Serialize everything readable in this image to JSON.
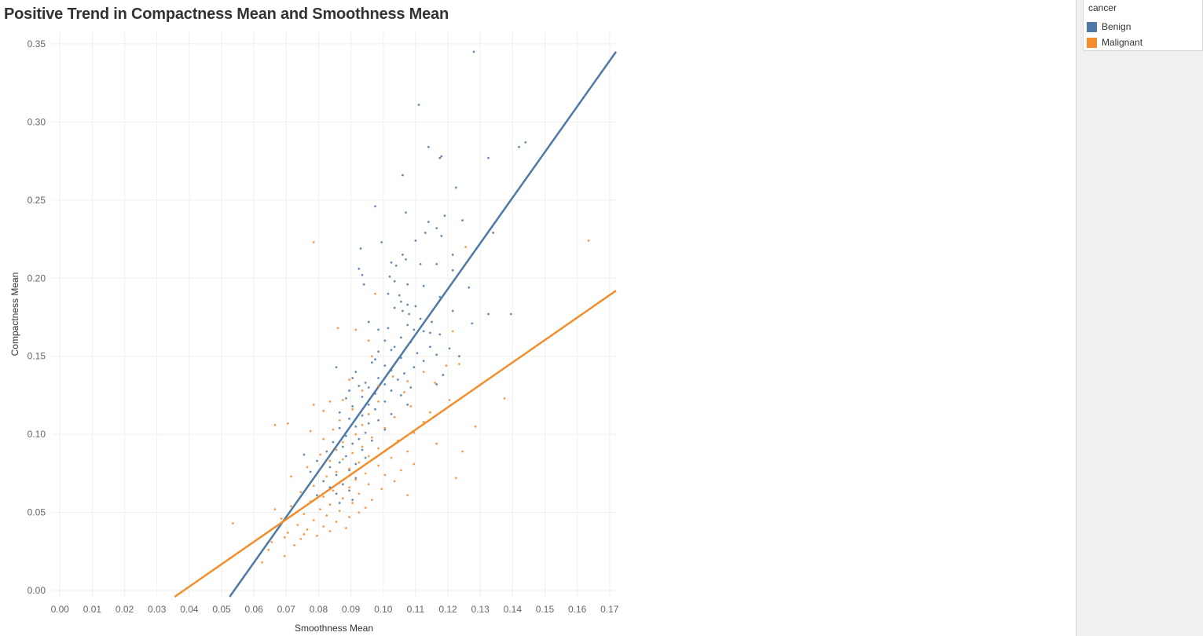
{
  "page": {
    "title": "Positive Trend in Compactness Mean and Smoothness Mean"
  },
  "legend": {
    "title": "cancer",
    "items": [
      {
        "label": "Benign",
        "color": "#4e79a7"
      },
      {
        "label": "Malignant",
        "color": "#f28e2b"
      }
    ]
  },
  "chart_data": {
    "type": "scatter",
    "title": "Positive Trend in Compactness Mean and Smoothness Mean",
    "xlabel": "Smoothness Mean",
    "ylabel": "Compactness Mean",
    "xlim": [
      -0.0025,
      0.172
    ],
    "ylim": [
      -0.004,
      0.358
    ],
    "x_ticks": [
      0.0,
      0.01,
      0.02,
      0.03,
      0.04,
      0.05,
      0.06,
      0.07,
      0.08,
      0.09,
      0.1,
      0.11,
      0.12,
      0.13,
      0.14,
      0.15,
      0.16,
      0.17
    ],
    "x_tick_labels": [
      "0.00",
      "0.01",
      "0.02",
      "0.03",
      "0.04",
      "0.05",
      "0.06",
      "0.07",
      "0.08",
      "0.09",
      "0.10",
      "0.11",
      "0.12",
      "0.13",
      "0.14",
      "0.15",
      "0.16",
      "0.17"
    ],
    "y_ticks": [
      0.0,
      0.05,
      0.1,
      0.15,
      0.2,
      0.25,
      0.3,
      0.35
    ],
    "y_tick_labels": [
      "0.00",
      "0.05",
      "0.10",
      "0.15",
      "0.20",
      "0.25",
      "0.30",
      "0.35"
    ],
    "grid": true,
    "legend_position": "top-right",
    "series": [
      {
        "name": "Benign",
        "color": "#4e79a7",
        "points": [
          [
            0.128,
            0.345
          ],
          [
            0.111,
            0.311
          ],
          [
            0.144,
            0.287
          ],
          [
            0.142,
            0.284
          ],
          [
            0.114,
            0.284
          ],
          [
            0.118,
            0.278
          ],
          [
            0.1175,
            0.277
          ],
          [
            0.1325,
            0.277
          ],
          [
            0.106,
            0.266
          ],
          [
            0.1225,
            0.258
          ],
          [
            0.0975,
            0.246
          ],
          [
            0.107,
            0.242
          ],
          [
            0.119,
            0.24
          ],
          [
            0.1245,
            0.237
          ],
          [
            0.114,
            0.236
          ],
          [
            0.1165,
            0.232
          ],
          [
            0.113,
            0.229
          ],
          [
            0.134,
            0.229
          ],
          [
            0.118,
            0.227
          ],
          [
            0.0995,
            0.223
          ],
          [
            0.11,
            0.224
          ],
          [
            0.093,
            0.219
          ],
          [
            0.1215,
            0.215
          ],
          [
            0.106,
            0.215
          ],
          [
            0.107,
            0.212
          ],
          [
            0.1025,
            0.21
          ],
          [
            0.1115,
            0.209
          ],
          [
            0.1165,
            0.209
          ],
          [
            0.104,
            0.208
          ],
          [
            0.0925,
            0.206
          ],
          [
            0.1215,
            0.205
          ],
          [
            0.102,
            0.201
          ],
          [
            0.1035,
            0.198
          ],
          [
            0.1075,
            0.196
          ],
          [
            0.094,
            0.196
          ],
          [
            0.0935,
            0.202
          ],
          [
            0.1125,
            0.195
          ],
          [
            0.1265,
            0.194
          ],
          [
            0.1015,
            0.19
          ],
          [
            0.105,
            0.189
          ],
          [
            0.1175,
            0.188
          ],
          [
            0.1055,
            0.185
          ],
          [
            0.1075,
            0.183
          ],
          [
            0.11,
            0.182
          ],
          [
            0.1035,
            0.181
          ],
          [
            0.106,
            0.179
          ],
          [
            0.108,
            0.177
          ],
          [
            0.1215,
            0.179
          ],
          [
            0.1325,
            0.177
          ],
          [
            0.1395,
            0.177
          ],
          [
            0.1115,
            0.174
          ],
          [
            0.115,
            0.172
          ],
          [
            0.0955,
            0.172
          ],
          [
            0.1075,
            0.17
          ],
          [
            0.1275,
            0.171
          ],
          [
            0.1015,
            0.168
          ],
          [
            0.1095,
            0.167
          ],
          [
            0.0985,
            0.167
          ],
          [
            0.1125,
            0.166
          ],
          [
            0.1145,
            0.165
          ],
          [
            0.1055,
            0.162
          ],
          [
            0.1175,
            0.164
          ],
          [
            0.1005,
            0.16
          ],
          [
            0.1085,
            0.159
          ],
          [
            0.1035,
            0.156
          ],
          [
            0.1145,
            0.156
          ],
          [
            0.1205,
            0.155
          ],
          [
            0.1025,
            0.154
          ],
          [
            0.0985,
            0.153
          ],
          [
            0.1105,
            0.152
          ],
          [
            0.1165,
            0.151
          ],
          [
            0.1055,
            0.149
          ],
          [
            0.0975,
            0.148
          ],
          [
            0.0965,
            0.146
          ],
          [
            0.1125,
            0.147
          ],
          [
            0.1235,
            0.15
          ],
          [
            0.0855,
            0.143
          ],
          [
            0.1005,
            0.144
          ],
          [
            0.1095,
            0.143
          ],
          [
            0.1025,
            0.141
          ],
          [
            0.0915,
            0.14
          ],
          [
            0.1065,
            0.139
          ],
          [
            0.1185,
            0.138
          ],
          [
            0.0985,
            0.136
          ],
          [
            0.0905,
            0.136
          ],
          [
            0.1045,
            0.135
          ],
          [
            0.0945,
            0.133
          ],
          [
            0.1005,
            0.132
          ],
          [
            0.0925,
            0.131
          ],
          [
            0.0955,
            0.13
          ],
          [
            0.1085,
            0.13
          ],
          [
            0.1165,
            0.132
          ],
          [
            0.1025,
            0.128
          ],
          [
            0.0895,
            0.128
          ],
          [
            0.0975,
            0.126
          ],
          [
            0.1055,
            0.125
          ],
          [
            0.0935,
            0.124
          ],
          [
            0.0885,
            0.123
          ],
          [
            0.1005,
            0.121
          ],
          [
            0.0955,
            0.119
          ],
          [
            0.1075,
            0.119
          ],
          [
            0.0905,
            0.118
          ],
          [
            0.0975,
            0.116
          ],
          [
            0.0865,
            0.114
          ],
          [
            0.1025,
            0.113
          ],
          [
            0.0935,
            0.112
          ],
          [
            0.0895,
            0.11
          ],
          [
            0.0985,
            0.109
          ],
          [
            0.0955,
            0.107
          ],
          [
            0.0915,
            0.105
          ],
          [
            0.0865,
            0.104
          ],
          [
            0.1005,
            0.103
          ],
          [
            0.0945,
            0.101
          ],
          [
            0.0885,
            0.099
          ],
          [
            0.0925,
            0.097
          ],
          [
            0.0965,
            0.096
          ],
          [
            0.0845,
            0.095
          ],
          [
            0.0905,
            0.094
          ],
          [
            0.0875,
            0.092
          ],
          [
            0.0935,
            0.09
          ],
          [
            0.0825,
            0.089
          ],
          [
            0.0755,
            0.087
          ],
          [
            0.0885,
            0.086
          ],
          [
            0.0945,
            0.085
          ],
          [
            0.0795,
            0.083
          ],
          [
            0.0865,
            0.082
          ],
          [
            0.0915,
            0.081
          ],
          [
            0.0835,
            0.079
          ],
          [
            0.0895,
            0.077
          ],
          [
            0.0775,
            0.076
          ],
          [
            0.0855,
            0.074
          ],
          [
            0.0915,
            0.072
          ],
          [
            0.0815,
            0.07
          ],
          [
            0.0875,
            0.068
          ],
          [
            0.0835,
            0.066
          ],
          [
            0.0895,
            0.064
          ],
          [
            0.0855,
            0.062
          ],
          [
            0.0795,
            0.061
          ],
          [
            0.0905,
            0.058
          ],
          [
            0.0865,
            0.056
          ]
        ],
        "trend_line": {
          "x": [
            0.0525,
            0.172
          ],
          "y": [
            -0.004,
            0.345
          ]
        }
      },
      {
        "name": "Malignant",
        "color": "#f28e2b",
        "points": [
          [
            0.0785,
            0.223
          ],
          [
            0.1635,
            0.224
          ],
          [
            0.1255,
            0.22
          ],
          [
            0.0975,
            0.19
          ],
          [
            0.086,
            0.168
          ],
          [
            0.0915,
            0.167
          ],
          [
            0.1215,
            0.166
          ],
          [
            0.0955,
            0.16
          ],
          [
            0.0965,
            0.15
          ],
          [
            0.1235,
            0.145
          ],
          [
            0.1195,
            0.144
          ],
          [
            0.1125,
            0.14
          ],
          [
            0.103,
            0.137
          ],
          [
            0.0895,
            0.135
          ],
          [
            0.1075,
            0.134
          ],
          [
            0.116,
            0.133
          ],
          [
            0.0985,
            0.131
          ],
          [
            0.0935,
            0.128
          ],
          [
            0.1065,
            0.127
          ],
          [
            0.1375,
            0.123
          ],
          [
            0.1205,
            0.122
          ],
          [
            0.0875,
            0.122
          ],
          [
            0.0835,
            0.121
          ],
          [
            0.0985,
            0.121
          ],
          [
            0.0785,
            0.119
          ],
          [
            0.1085,
            0.118
          ],
          [
            0.0905,
            0.116
          ],
          [
            0.0815,
            0.115
          ],
          [
            0.1145,
            0.114
          ],
          [
            0.0955,
            0.113
          ],
          [
            0.1035,
            0.111
          ],
          [
            0.0865,
            0.109
          ],
          [
            0.1125,
            0.108
          ],
          [
            0.0665,
            0.106
          ],
          [
            0.0705,
            0.107
          ],
          [
            0.0935,
            0.106
          ],
          [
            0.1285,
            0.105
          ],
          [
            0.1005,
            0.104
          ],
          [
            0.0845,
            0.103
          ],
          [
            0.0775,
            0.102
          ],
          [
            0.1095,
            0.101
          ],
          [
            0.0915,
            0.1
          ],
          [
            0.0965,
            0.098
          ],
          [
            0.0815,
            0.097
          ],
          [
            0.1045,
            0.096
          ],
          [
            0.0875,
            0.095
          ],
          [
            0.1165,
            0.094
          ],
          [
            0.0935,
            0.092
          ],
          [
            0.0985,
            0.091
          ],
          [
            0.0855,
            0.09
          ],
          [
            0.1075,
            0.089
          ],
          [
            0.1245,
            0.089
          ],
          [
            0.0905,
            0.088
          ],
          [
            0.0805,
            0.087
          ],
          [
            0.0955,
            0.086
          ],
          [
            0.1025,
            0.085
          ],
          [
            0.0875,
            0.084
          ],
          [
            0.0835,
            0.083
          ],
          [
            0.0925,
            0.082
          ],
          [
            0.1095,
            0.081
          ],
          [
            0.0985,
            0.08
          ],
          [
            0.0765,
            0.079
          ],
          [
            0.0895,
            0.078
          ],
          [
            0.1055,
            0.077
          ],
          [
            0.0855,
            0.076
          ],
          [
            0.0945,
            0.075
          ],
          [
            0.1005,
            0.074
          ],
          [
            0.0825,
            0.073
          ],
          [
            0.0715,
            0.073
          ],
          [
            0.1225,
            0.072
          ],
          [
            0.0915,
            0.071
          ],
          [
            0.1035,
            0.07
          ],
          [
            0.0865,
            0.069
          ],
          [
            0.0955,
            0.068
          ],
          [
            0.0785,
            0.067
          ],
          [
            0.0895,
            0.066
          ],
          [
            0.0995,
            0.065
          ],
          [
            0.0845,
            0.064
          ],
          [
            0.0745,
            0.063
          ],
          [
            0.0925,
            0.062
          ],
          [
            0.1075,
            0.061
          ],
          [
            0.0815,
            0.06
          ],
          [
            0.0875,
            0.059
          ],
          [
            0.0965,
            0.058
          ],
          [
            0.0775,
            0.057
          ],
          [
            0.0905,
            0.056
          ],
          [
            0.0835,
            0.055
          ],
          [
            0.0715,
            0.054
          ],
          [
            0.0945,
            0.053
          ],
          [
            0.0805,
            0.052
          ],
          [
            0.0665,
            0.052
          ],
          [
            0.0865,
            0.051
          ],
          [
            0.0925,
            0.05
          ],
          [
            0.0755,
            0.049
          ],
          [
            0.0825,
            0.048
          ],
          [
            0.0895,
            0.047
          ],
          [
            0.0685,
            0.046
          ],
          [
            0.0785,
            0.045
          ],
          [
            0.0855,
            0.044
          ],
          [
            0.0535,
            0.043
          ],
          [
            0.0735,
            0.042
          ],
          [
            0.0815,
            0.041
          ],
          [
            0.0885,
            0.04
          ],
          [
            0.0765,
            0.039
          ],
          [
            0.0835,
            0.038
          ],
          [
            0.0705,
            0.037
          ],
          [
            0.0755,
            0.036
          ],
          [
            0.0795,
            0.035
          ],
          [
            0.0695,
            0.034
          ],
          [
            0.0745,
            0.033
          ],
          [
            0.0655,
            0.031
          ],
          [
            0.0725,
            0.029
          ],
          [
            0.0645,
            0.026
          ],
          [
            0.0695,
            0.022
          ],
          [
            0.0625,
            0.018
          ]
        ],
        "trend_line": {
          "x": [
            0.0355,
            0.172
          ],
          "y": [
            -0.004,
            0.192
          ]
        }
      }
    ]
  }
}
